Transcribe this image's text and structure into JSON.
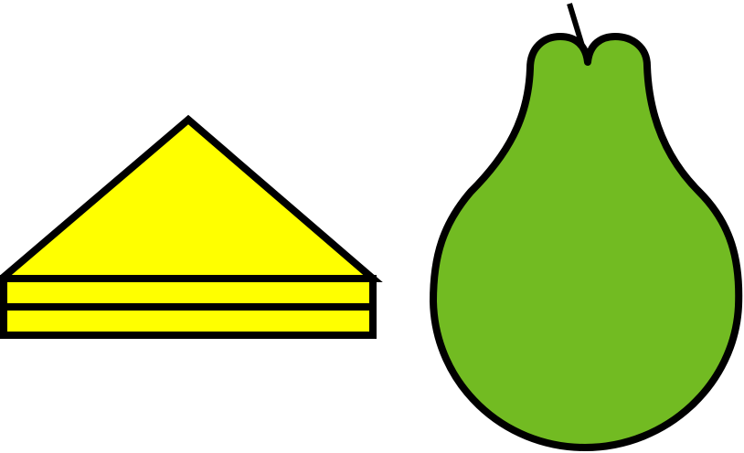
{
  "scene": {
    "background": "#ffffff",
    "outline_color": "#000000",
    "objects": [
      {
        "name": "yellow-sandwich-icon",
        "fill": "#ffff00"
      },
      {
        "name": "green-pear-icon",
        "fill": "#72bb22"
      }
    ]
  }
}
